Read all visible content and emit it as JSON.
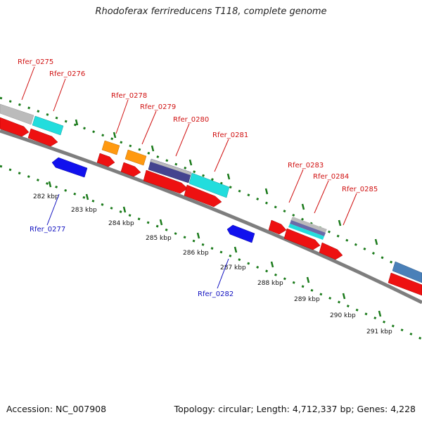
{
  "title": "Rhodoferax ferrireducens T118, complete genome",
  "footer": {
    "accession": "Accession: NC_007908",
    "summary": "Topology: circular; Length: 4,712,337 bp; Genes: 4,228"
  },
  "colors": {
    "backbone": "#888888",
    "tick_dots": "#1a7a1a",
    "cds_red": "#ee1111",
    "cds_blue": "#1111ee",
    "gray": "#bbbbbb",
    "cyan": "#22dddd",
    "orange": "#ff9910",
    "navy": "#44448f",
    "steel": "#4a80b8",
    "label_red": "#d01010",
    "label_blue": "#1010c0"
  },
  "tick_labels": [
    "282 kbp",
    "283 kbp",
    "284 kbp",
    "285 kbp",
    "286 kbp",
    "287 kbp",
    "288 kbp",
    "289 kbp",
    "290 kbp",
    "291 kbp"
  ],
  "gene_labels": [
    {
      "text": "Rfer_0275",
      "strand": "forward"
    },
    {
      "text": "Rfer_0276",
      "strand": "forward"
    },
    {
      "text": "Rfer_0277",
      "strand": "reverse"
    },
    {
      "text": "Rfer_0278",
      "strand": "forward"
    },
    {
      "text": "Rfer_0279",
      "strand": "forward"
    },
    {
      "text": "Rfer_0280",
      "strand": "forward"
    },
    {
      "text": "Rfer_0281",
      "strand": "forward"
    },
    {
      "text": "Rfer_0282",
      "strand": "reverse"
    },
    {
      "text": "Rfer_0283",
      "strand": "forward"
    },
    {
      "text": "Rfer_0284",
      "strand": "forward"
    },
    {
      "text": "Rfer_0285",
      "strand": "forward"
    }
  ]
}
